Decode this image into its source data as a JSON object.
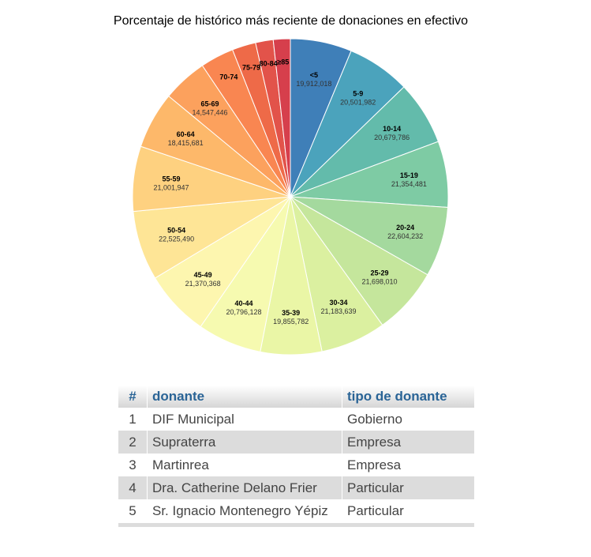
{
  "chart_data": {
    "type": "pie",
    "title": "Porcentaje de histórico más reciente de donaciones en efectivo",
    "categories": [
      "<5",
      "5-9",
      "10-14",
      "15-19",
      "20-24",
      "25-29",
      "30-34",
      "35-39",
      "40-44",
      "45-49",
      "50-54",
      "55-59",
      "60-64",
      "65-69",
      "70-74",
      "75-79",
      "80-84",
      "≥85"
    ],
    "values": [
      19912018,
      20501982,
      20679786,
      21354481,
      22604232,
      21698010,
      21183639,
      19855782,
      20796128,
      21370368,
      22525490,
      21001947,
      18415681,
      14547446,
      10883537,
      7669940,
      5723771,
      5493433
    ],
    "value_labels": [
      "19,912,018",
      "20,501,982",
      "20,679,786",
      "21,354,481",
      "22,604,232",
      "21,698,010",
      "21,183,639",
      "19,855,782",
      "20,796,128",
      "21,370,368",
      "22,525,490",
      "21,001,947",
      "18,415,681",
      "14,547,446",
      "",
      "",
      "",
      ""
    ],
    "colors": [
      "#3f7fb8",
      "#4ba3bc",
      "#63bbab",
      "#7ecba4",
      "#a4d99e",
      "#c5e69c",
      "#dbf0a0",
      "#eaf6a6",
      "#f6fab0",
      "#fdf6af",
      "#fee596",
      "#fed180",
      "#fdb86a",
      "#fca15d",
      "#f98651",
      "#ee6a48",
      "#e2534a",
      "#d63f4c"
    ],
    "legend": "none"
  },
  "table": {
    "headers": [
      "#",
      "donante",
      "tipo de donante"
    ],
    "rows": [
      [
        "1",
        "DIF Municipal",
        "Gobierno"
      ],
      [
        "2",
        "Supraterra",
        "Empresa"
      ],
      [
        "3",
        "Martinrea",
        "Empresa"
      ],
      [
        "4",
        "Dra. Catherine Delano Frier",
        "Particular"
      ],
      [
        "5",
        "Sr. Ignacio Montenegro Yépiz",
        "Particular"
      ]
    ]
  }
}
